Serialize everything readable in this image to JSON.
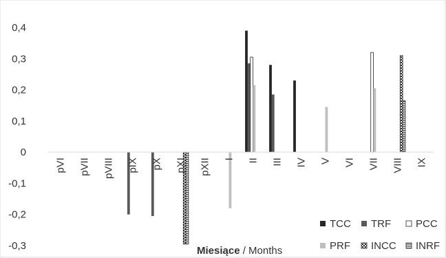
{
  "chart_data": {
    "type": "bar",
    "categories": [
      "pVI",
      "pVII",
      "pVIII",
      "pIX",
      "pX",
      "pXI",
      "pXII",
      "I",
      "II",
      "III",
      "IV",
      "V",
      "VI",
      "VII",
      "VIII",
      "IX"
    ],
    "series": [
      {
        "name": "TCC",
        "color": "#262626",
        "pattern": "solid",
        "values": [
          0,
          0,
          0,
          0,
          0,
          0,
          0,
          0,
          0.39,
          0.28,
          0.23,
          0,
          0,
          0,
          0,
          0
        ]
      },
      {
        "name": "TRF",
        "color": "#595959",
        "pattern": "solid",
        "values": [
          0,
          0,
          0,
          -0.2,
          -0.205,
          0,
          0,
          0,
          0.285,
          0.185,
          0,
          0,
          0,
          0,
          0,
          0
        ]
      },
      {
        "name": "PCC",
        "color": "#ffffff",
        "pattern": "outline",
        "values": [
          0,
          0,
          0,
          0,
          0,
          0,
          0,
          0,
          0.305,
          0,
          0,
          0,
          0,
          0.32,
          0,
          0
        ]
      },
      {
        "name": "PRF",
        "color": "#bfbfbf",
        "pattern": "solid",
        "values": [
          0,
          0,
          0,
          0,
          0,
          0,
          0,
          -0.18,
          0.215,
          0,
          0,
          0.145,
          0,
          0.205,
          0,
          0
        ]
      },
      {
        "name": "INCC",
        "color": "#262626",
        "pattern": "checker",
        "values": [
          0,
          0,
          0,
          0,
          0,
          -0.295,
          0,
          0,
          0,
          0,
          0,
          0,
          0,
          0,
          0.31,
          0
        ]
      },
      {
        "name": "INRF",
        "color": "#595959",
        "pattern": "hstripe",
        "values": [
          0,
          0,
          0,
          0,
          0,
          -0.295,
          0,
          0,
          0,
          0,
          0,
          0,
          0,
          0,
          0.165,
          0
        ]
      }
    ],
    "yticks": [
      "0,4",
      "0,3",
      "0,2",
      "0,1",
      "0",
      "-0,1",
      "-0,2",
      "-0,3"
    ],
    "ylim": [
      -0.3,
      0.4
    ],
    "xlabel_bold": "Miesiące",
    "xlabel_rest": " / Months",
    "grid": false,
    "legend_position": "bottom-right"
  }
}
